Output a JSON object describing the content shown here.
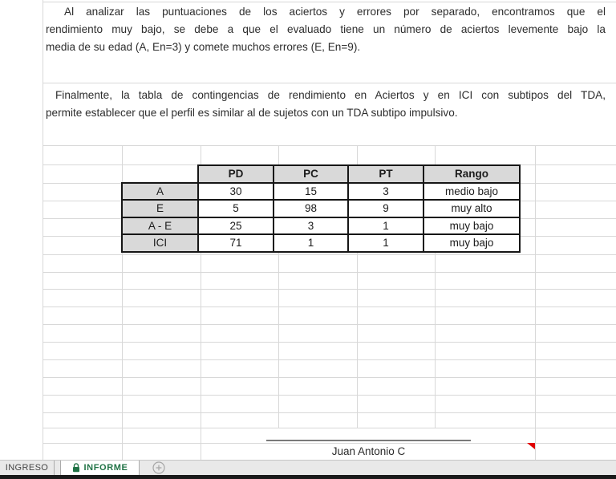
{
  "report": {
    "paragraph1_lines": [
      "Al analizar las puntuaciones de los aciertos y errores por separado, encontramos que el",
      "rendimiento muy bajo, se debe a que el evaluado tiene un número de aciertos levemente bajo la",
      "media de su edad  (A, En=3) y comete muchos errores (E, En=9)."
    ],
    "paragraph2_lines": [
      "Finalmente, la tabla de contingencias de rendimiento en Aciertos y en ICI con subtipos del TDA,",
      "permite establecer que el perfil es similar al de sujetos con un TDA subtipo impulsivo."
    ]
  },
  "table": {
    "col_headers": [
      "PD",
      "PC",
      "PT",
      "Rango"
    ],
    "rows": [
      {
        "label": "A",
        "values": [
          "30",
          "15",
          "3",
          "medio bajo"
        ]
      },
      {
        "label": "E",
        "values": [
          "5",
          "98",
          "9",
          "muy alto"
        ]
      },
      {
        "label": "A - E",
        "values": [
          "25",
          "3",
          "1",
          "muy bajo"
        ]
      },
      {
        "label": "ICI",
        "values": [
          "71",
          "1",
          "1",
          "muy bajo"
        ]
      }
    ]
  },
  "signature": {
    "name": "Juan Antonio C"
  },
  "sheet_bar": {
    "tabs": [
      {
        "label": "INGRESO",
        "active": false
      },
      {
        "label": "INFORME",
        "active": true,
        "locked": true
      }
    ],
    "add_sheet_icon": "plus-circle-icon"
  },
  "colors": {
    "active_tab_green": "#217346",
    "table_header_fill": "#d9d9d9",
    "comment_marker_red": "#e00000",
    "gridline": "#d8d8d8",
    "signature_line": "#7a7a7a"
  }
}
